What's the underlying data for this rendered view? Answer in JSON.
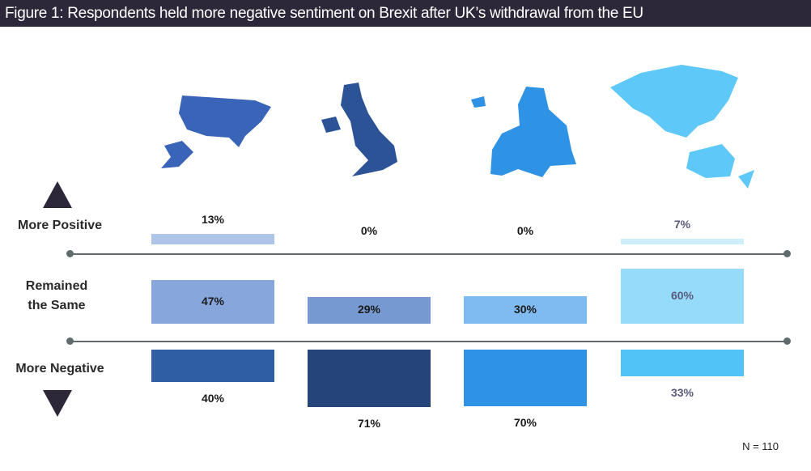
{
  "title": "Figure 1: Respondents held more negative sentiment on Brexit after UK’s withdrawal from the EU",
  "row_labels": {
    "positive": "More Positive",
    "same_line1": "Remained",
    "same_line2": "the Same",
    "negative": "More Negative"
  },
  "note": "N = 110",
  "chart_data": {
    "type": "bar",
    "categories": [
      "USA",
      "UK",
      "Europe",
      "Asia-Pacific"
    ],
    "category_icons": [
      "usa-map-icon",
      "uk-map-icon",
      "europe-map-icon",
      "asia-pacific-map-icon"
    ],
    "series": [
      {
        "name": "More Positive",
        "values": [
          13,
          0,
          0,
          7
        ],
        "labels": [
          "13%",
          "0%",
          "0%",
          "7%"
        ]
      },
      {
        "name": "Remained the Same",
        "values": [
          47,
          29,
          30,
          60
        ],
        "labels": [
          "47%",
          "29%",
          "30%",
          "60%"
        ]
      },
      {
        "name": "More Negative",
        "values": [
          40,
          71,
          70,
          33
        ],
        "labels": [
          "40%",
          "71%",
          "70%",
          "33%"
        ]
      }
    ],
    "colors": {
      "positive": [
        "#aec4e8",
        "#ffffff",
        "#ffffff",
        "#cfeefc"
      ],
      "same": [
        "#86a6dc",
        "#7699d2",
        "#7fbaf0",
        "#96dcfa"
      ],
      "negative": [
        "#305ea5",
        "#25457a",
        "#2f93e5",
        "#52c3f7"
      ],
      "label_text": [
        "#1a1a1a",
        "#1a1a1a",
        "#1a1a1a",
        "#5b5a7c"
      ],
      "maps": [
        "#3a64b8",
        "#2b5396",
        "#2f93e5",
        "#5ec8f8"
      ]
    },
    "unit": "%"
  }
}
